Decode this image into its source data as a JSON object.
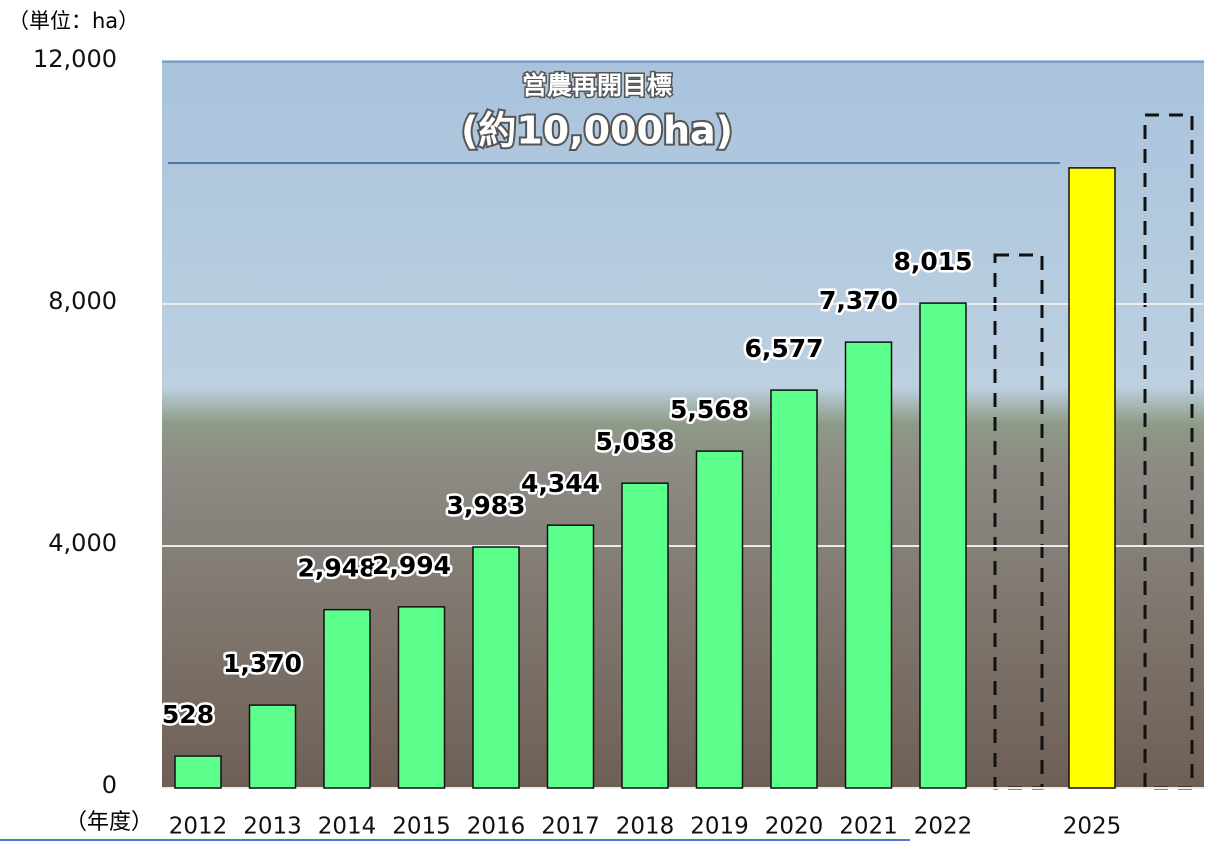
{
  "chart_data": {
    "type": "bar",
    "unit_label": "（単位：ha）",
    "x_label": "（年度）",
    "annotation": [
      "営農再開目標",
      "(約10,000ha)"
    ],
    "categories": [
      "2012",
      "2013",
      "2014",
      "2015",
      "2016",
      "2017",
      "2018",
      "2019",
      "2020",
      "2021",
      "2022",
      null,
      "2025",
      null
    ],
    "values": [
      528,
      1370,
      2948,
      2994,
      3983,
      4344,
      5038,
      5568,
      6577,
      7370,
      8015,
      null,
      10250,
      null
    ],
    "value_labels": [
      "528",
      "1,370",
      "2,948",
      "2,994",
      "3,983",
      "4,344",
      "5,038",
      "5,568",
      "6,577",
      "7,370",
      "8,015",
      null,
      null,
      null
    ],
    "colors": [
      "#5cff8c",
      "#5cff8c",
      "#5cff8c",
      "#5cff8c",
      "#5cff8c",
      "#5cff8c",
      "#5cff8c",
      "#5cff8c",
      "#5cff8c",
      "#5cff8c",
      "#5cff8c",
      null,
      "#ffff00",
      null
    ],
    "ylim": [
      0,
      12000
    ],
    "yticks": [
      0,
      {
        "value": 4000,
        "label": "4,000"
      },
      {
        "value": 8000,
        "label": "8,000"
      },
      {
        "value": 12000,
        "label": "12,000"
      }
    ],
    "grid": true
  }
}
